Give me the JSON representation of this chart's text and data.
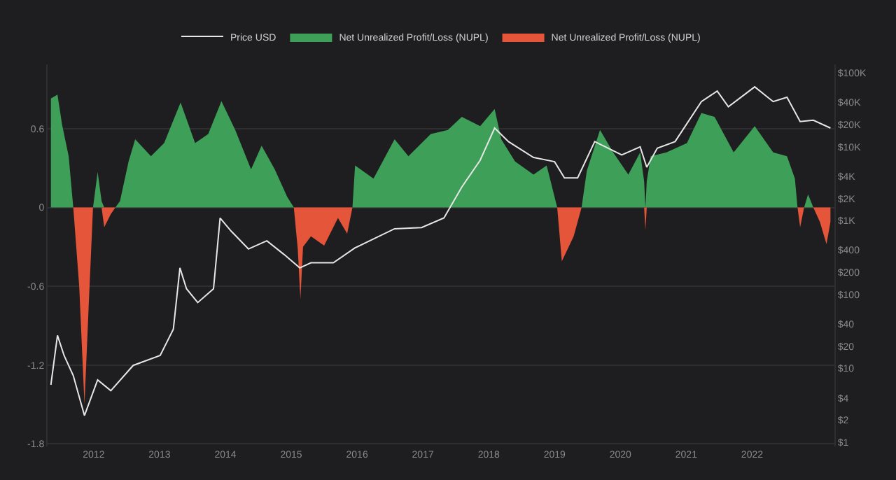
{
  "chart_data": {
    "type": "area",
    "x": [
      2011.35,
      2011.45,
      2011.52,
      2011.62,
      2011.69,
      2011.78,
      2011.86,
      2011.92,
      2011.99,
      2012.06,
      2012.12,
      2012.16,
      2012.26,
      2012.33,
      2012.4,
      2012.53,
      2012.63,
      2012.87,
      2013.07,
      2013.32,
      2013.54,
      2013.74,
      2013.94,
      2014.15,
      2014.39,
      2014.55,
      2014.75,
      2014.94,
      2015.04,
      2015.1,
      2015.14,
      2015.18,
      2015.3,
      2015.5,
      2015.71,
      2015.85,
      2015.93,
      2015.97,
      2016.25,
      2016.57,
      2016.78,
      2017.12,
      2017.38,
      2017.59,
      2017.87,
      2018.09,
      2018.19,
      2018.4,
      2018.68,
      2018.88,
      2019.04,
      2019.11,
      2019.29,
      2019.41,
      2019.49,
      2019.69,
      2019.89,
      2020.12,
      2020.3,
      2020.36,
      2020.38,
      2020.4,
      2020.46,
      2020.7,
      2021.01,
      2021.23,
      2021.43,
      2021.72,
      2022.04,
      2022.32,
      2022.53,
      2022.65,
      2022.69,
      2022.73,
      2022.79,
      2022.85,
      2022.93,
      2023.03,
      2023.13,
      2023.19
    ],
    "series": [
      {
        "name": "Price USD",
        "type": "line",
        "axis": "y2",
        "color": "#e6e6e6",
        "x": [
          2011.35,
          2011.45,
          2011.55,
          2011.69,
          2011.86,
          2012.06,
          2012.26,
          2012.6,
          2013.01,
          2013.21,
          2013.31,
          2013.41,
          2013.58,
          2013.82,
          2013.92,
          2014.09,
          2014.35,
          2014.63,
          2014.89,
          2015.13,
          2015.3,
          2015.64,
          2015.97,
          2016.57,
          2016.98,
          2017.32,
          2017.59,
          2017.87,
          2018.09,
          2018.3,
          2018.68,
          2019.0,
          2019.15,
          2019.35,
          2019.61,
          2020.02,
          2020.3,
          2020.4,
          2020.56,
          2020.83,
          2021.23,
          2021.47,
          2021.64,
          2022.04,
          2022.32,
          2022.53,
          2022.73,
          2022.93,
          2023.19
        ],
        "values": [
          6,
          28,
          15,
          8,
          2.3,
          7,
          5,
          11,
          15,
          34,
          230,
          120,
          78,
          120,
          1090,
          720,
          415,
          535,
          350,
          230,
          270,
          270,
          430,
          780,
          810,
          1090,
          2850,
          6600,
          18000,
          11800,
          7200,
          6300,
          3800,
          3800,
          11800,
          7800,
          10000,
          5300,
          9600,
          11800,
          41000,
          57000,
          35000,
          65000,
          41000,
          47000,
          22000,
          23000,
          18000
        ]
      },
      {
        "name": "Net Unrealized Profit/Loss (NUPL)",
        "color": "#3e9f58",
        "values": [
          0.83,
          0.86,
          0.63,
          0.39,
          0,
          0,
          0,
          0,
          0,
          0.27,
          0.05,
          0,
          0,
          0,
          0.05,
          0.35,
          0.52,
          0.39,
          0.49,
          0.8,
          0.49,
          0.56,
          0.81,
          0.59,
          0.29,
          0.47,
          0.29,
          0.08,
          0,
          0,
          0,
          0,
          0,
          0,
          0,
          0,
          0,
          0.32,
          0.22,
          0.52,
          0.39,
          0.56,
          0.59,
          0.69,
          0.62,
          0.75,
          0.52,
          0.35,
          0.25,
          0.32,
          0,
          0,
          0,
          0,
          0.28,
          0.59,
          0.42,
          0.25,
          0.42,
          0.2,
          0,
          0.2,
          0.39,
          0.42,
          0.49,
          0.72,
          0.69,
          0.42,
          0.62,
          0.42,
          0.39,
          0.22,
          0,
          0,
          0,
          0.1,
          0,
          0,
          0,
          0
        ]
      },
      {
        "name": "Net Unrealized Profit/Loss (NUPL)",
        "color": "#e4553a",
        "values": [
          0,
          0,
          0,
          0,
          0,
          -0.6,
          -1.5,
          -0.8,
          0,
          0,
          0,
          -0.15,
          -0.05,
          0,
          0,
          0,
          0,
          0,
          0,
          0,
          0,
          0,
          0,
          0,
          0,
          0,
          0,
          0,
          0,
          -0.32,
          -0.7,
          -0.3,
          -0.22,
          -0.29,
          -0.08,
          -0.2,
          0,
          0,
          0,
          0,
          0,
          0,
          0,
          0,
          0,
          0,
          0,
          0,
          0,
          0,
          0,
          -0.41,
          -0.22,
          0,
          0,
          0,
          0,
          0,
          0,
          0,
          -0.17,
          0,
          0,
          0,
          0,
          0,
          0,
          0,
          0,
          0,
          0,
          0,
          0,
          -0.15,
          0,
          0,
          0,
          -0.11,
          -0.28,
          -0.11
        ]
      }
    ],
    "xlim": [
      2011.3,
      2023.25
    ],
    "xticks": [
      2012,
      2013,
      2014,
      2015,
      2016,
      2017,
      2018,
      2019,
      2020,
      2021,
      2022
    ],
    "ylim": [
      -1.82,
      1.09
    ],
    "yticks": [
      0.6,
      0,
      -0.6,
      -1.2,
      -1.8
    ],
    "log": "y2",
    "y2lim": [
      0.88,
      131000
    ],
    "y2ticks": [
      {
        "value": 1,
        "label": "$1"
      },
      {
        "value": 2,
        "label": "$2"
      },
      {
        "value": 4,
        "label": "$4"
      },
      {
        "value": 10,
        "label": "$10"
      },
      {
        "value": 20,
        "label": "$20"
      },
      {
        "value": 40,
        "label": "$40"
      },
      {
        "value": 100,
        "label": "$100"
      },
      {
        "value": 200,
        "label": "$200"
      },
      {
        "value": 400,
        "label": "$400"
      },
      {
        "value": 1000,
        "label": "$1K"
      },
      {
        "value": 2000,
        "label": "$2K"
      },
      {
        "value": 4000,
        "label": "$4K"
      },
      {
        "value": 10000,
        "label": "$10K"
      },
      {
        "value": 20000,
        "label": "$20K"
      },
      {
        "value": 40000,
        "label": "$40K"
      },
      {
        "value": 100000,
        "label": "$100K"
      }
    ],
    "grid": "y",
    "legend": "top"
  }
}
